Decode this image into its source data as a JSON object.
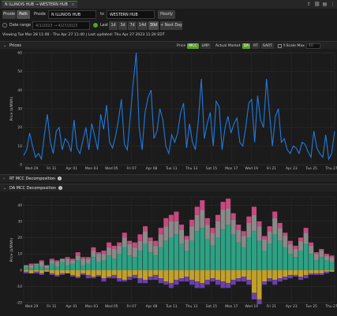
{
  "tab": {
    "title": "N ILLINOIS HUB → WESTERN HUB",
    "close": "×"
  },
  "top_icons": [
    "share-icon",
    "link-icon",
    "document-icon",
    "more-icon"
  ],
  "controls": {
    "pnode_btn": "Pnode",
    "path_btn": "Path",
    "pnode_label": "Pnode",
    "pnode_value": "N ILLINOIS HUB",
    "to_label": "to",
    "to_value": "WESTERN HUB",
    "interval": "Hourly"
  },
  "range": {
    "date_range_label": "Date range",
    "date_range_value": "4/1/2023 → 4/27/2023",
    "last_label": "Last",
    "options": [
      "1d",
      "3d",
      "7d",
      "14d",
      "30d"
    ],
    "next_day": "+ Next Day"
  },
  "viewing": "Viewing Tue Mar 28 11:00 - Thu Apr 27 11:40 | Last updated: Thu Apr 27 2023 11:20 EDT",
  "prices_panel": {
    "title": "Prices",
    "price_label": "Price",
    "mcc": "MCC",
    "lmp": "LMP",
    "actual_market": "Actual Market",
    "markets": [
      "DA",
      "RT",
      "SART"
    ],
    "yscale_label": "Y-Scale Max",
    "yscale_placeholder": "40"
  },
  "rt_panel": {
    "title": "RT MCC Decomposition"
  },
  "da_panel": {
    "title": "DA MCC Decomposition"
  },
  "x_ticks": [
    "Wed 29",
    "Fri 31",
    "Apr 01",
    "Mon 03",
    "Wed 05",
    "Fri 07",
    "Apr 08",
    "Tue 11",
    "Thu 13",
    "Sat 15",
    "Mon 17",
    "Wed 19",
    "Fri 21",
    "Apr 23",
    "Tue 25",
    "Thu 27"
  ],
  "colors": {
    "price_line": "#1f7ae0",
    "accent": "#5a9d2f"
  },
  "chart_data": [
    {
      "type": "line",
      "ylabel": "Price ($/MWh)",
      "ylim": [
        0,
        60
      ],
      "y_ticks": [
        0,
        10,
        20,
        30,
        40,
        50,
        60
      ],
      "series": [
        {
          "values": [
            5,
            8,
            17,
            10,
            4,
            6,
            3,
            16,
            27,
            12,
            6,
            18,
            20,
            8,
            14,
            12,
            7,
            24,
            9,
            6,
            13,
            20,
            8,
            22,
            15,
            8,
            27,
            19,
            32,
            12,
            9,
            15,
            24,
            35,
            11,
            8,
            26,
            44,
            60,
            20,
            8,
            28,
            36,
            40,
            14,
            18,
            30,
            24,
            10,
            6,
            16,
            12,
            17,
            28,
            33,
            9,
            22,
            12,
            8,
            24,
            46,
            14,
            22,
            28,
            10,
            34,
            31,
            8,
            20,
            26,
            17,
            22,
            25,
            12,
            10,
            20,
            33,
            35,
            12,
            37,
            24,
            20,
            46,
            28,
            10,
            26,
            30,
            12,
            14,
            8,
            6,
            10,
            9,
            6,
            12,
            11,
            7,
            4,
            18,
            9,
            6,
            4,
            16,
            3,
            6,
            18
          ]
        }
      ]
    },
    {
      "type": "bar",
      "ylabel": "Price ($/MWh)",
      "ylim": [
        -20,
        45
      ],
      "y_ticks": [
        -20,
        -10,
        0,
        10,
        20,
        30,
        40
      ],
      "series": [
        {
          "name": "",
          "color": "#2ea083",
          "values": [
            2,
            1,
            3,
            2,
            1,
            4,
            2,
            5,
            3,
            4,
            6,
            3,
            4,
            8,
            5,
            6,
            9,
            7,
            10,
            14,
            9,
            8,
            12,
            16,
            11,
            9,
            14,
            18,
            20,
            22,
            16,
            12,
            18,
            24,
            26,
            19,
            15,
            20,
            25,
            28,
            22,
            17,
            14,
            20,
            24,
            18,
            12,
            16,
            22,
            18,
            14,
            10,
            8,
            12,
            16,
            10,
            6,
            8,
            6,
            5
          ]
        },
        {
          "name": "",
          "color": "#8a8a8a",
          "values": [
            1,
            2,
            1,
            3,
            2,
            2,
            3,
            2,
            4,
            2,
            3,
            4,
            3,
            4,
            5,
            4,
            5,
            6,
            5,
            6,
            7,
            6,
            6,
            8,
            7,
            6,
            8,
            9,
            10,
            8,
            9,
            7,
            9,
            10,
            11,
            9,
            8,
            10,
            12,
            10,
            9,
            8,
            7,
            9,
            10,
            9,
            7,
            8,
            10,
            8,
            7,
            6,
            5,
            6,
            7,
            5,
            4,
            4,
            3,
            3
          ]
        },
        {
          "name": "",
          "color": "#c9497f",
          "values": [
            0,
            1,
            0,
            1,
            0,
            1,
            1,
            0,
            1,
            1,
            2,
            1,
            1,
            2,
            1,
            2,
            3,
            2,
            2,
            3,
            2,
            3,
            4,
            3,
            2,
            3,
            4,
            5,
            4,
            6,
            3,
            2,
            4,
            5,
            6,
            4,
            3,
            4,
            5,
            6,
            4,
            3,
            3,
            4,
            5,
            3,
            2,
            3,
            4,
            3,
            2,
            2,
            2,
            2,
            3,
            2,
            1,
            1,
            1,
            1
          ]
        },
        {
          "name": "",
          "color": "#c2a02a",
          "values": [
            -1,
            -2,
            -1,
            -2,
            -1,
            -2,
            -3,
            -2,
            -2,
            -3,
            -4,
            -2,
            -3,
            -4,
            -3,
            -5,
            -4,
            -3,
            -5,
            -6,
            -4,
            -3,
            -5,
            -6,
            -4,
            -3,
            -5,
            -7,
            -8,
            -6,
            -5,
            -4,
            -6,
            -7,
            -8,
            -6,
            -5,
            -6,
            -7,
            -8,
            -6,
            -5,
            -4,
            -6,
            -14,
            -18,
            -7,
            -5,
            -6,
            -5,
            -4,
            -3,
            -3,
            -4,
            -3,
            -2,
            -2,
            -2,
            -1,
            -1
          ]
        },
        {
          "name": "",
          "color": "#6c3fb0",
          "values": [
            -1,
            0,
            -1,
            -1,
            0,
            -1,
            -1,
            -1,
            0,
            -1,
            -1,
            -1,
            -2,
            -1,
            -1,
            -2,
            -1,
            -2,
            -2,
            -1,
            -2,
            -2,
            -3,
            -2,
            -2,
            -3,
            -3,
            -2,
            -3,
            -3,
            -2,
            -3,
            -3,
            -4,
            -3,
            -3,
            -2,
            -3,
            -4,
            -3,
            -3,
            -2,
            -3,
            -3,
            -4,
            -3,
            -2,
            -2,
            -3,
            -2,
            -2,
            -2,
            -1,
            -2,
            -2,
            -1,
            -1,
            -1,
            -1,
            0
          ]
        }
      ]
    }
  ]
}
